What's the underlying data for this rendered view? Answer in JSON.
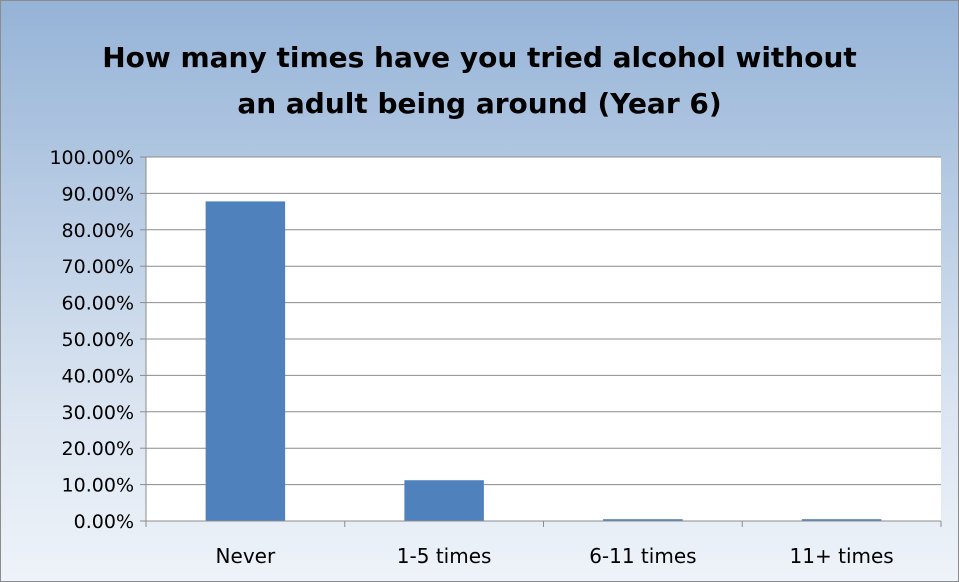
{
  "chart_data": {
    "type": "bar",
    "title_lines": [
      "How many times have you tried alcohol without",
      "an adult being around (Year 6)"
    ],
    "title": "How many times have you tried alcohol without an adult being around (Year 6)",
    "xlabel": "",
    "ylabel": "",
    "categories": [
      "Never",
      "1-5 times",
      "6-11 times",
      "11+ times"
    ],
    "values": [
      87.8,
      11.2,
      0.5,
      0.5
    ],
    "ylim": [
      0,
      100
    ],
    "yticks": [
      0,
      10,
      20,
      30,
      40,
      50,
      60,
      70,
      80,
      90,
      100
    ],
    "ytick_labels": [
      "0.00%",
      "10.00%",
      "20.00%",
      "30.00%",
      "40.00%",
      "50.00%",
      "60.00%",
      "70.00%",
      "80.00%",
      "90.00%",
      "100.00%"
    ],
    "grid": true,
    "legend": "none",
    "bar_color": "#4f81bd",
    "background_color": "#b8cce4"
  }
}
